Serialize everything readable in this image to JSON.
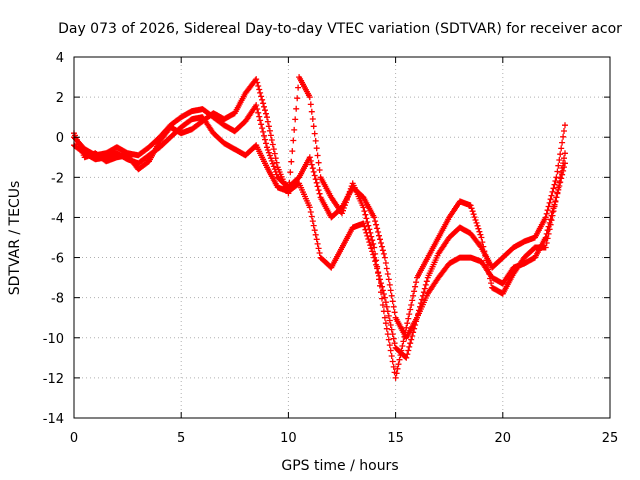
{
  "chart_data": {
    "type": "scatter",
    "title": "Day 073 of 2026, Sidereal Day-to-day VTEC variation (SDTVAR) for receiver acor",
    "xlabel": "GPS time / hours",
    "ylabel": "SDTVAR / TECUs",
    "xlim": [
      0,
      25
    ],
    "ylim": [
      -14,
      4
    ],
    "xticks": [
      0,
      5,
      10,
      15,
      20,
      25
    ],
    "yticks": [
      -14,
      -12,
      -10,
      -8,
      -6,
      -4,
      -2,
      0,
      2,
      4
    ],
    "xtick_labels": [
      "0",
      "5",
      "10",
      "15",
      "20",
      "25"
    ],
    "ytick_labels": [
      "-14",
      "-12",
      "-10",
      "-8",
      "-6",
      "-4",
      "-2",
      "0",
      "2",
      "4"
    ],
    "grid": true,
    "legend": "none",
    "marker": "+",
    "series": [
      {
        "color": "#ff0000",
        "x": [
          0.0,
          0.5,
          1.0,
          1.5,
          2.0,
          2.5,
          3.0,
          3.5,
          4.0,
          4.5,
          5.0,
          5.5,
          6.0,
          6.5,
          7.0,
          7.5,
          8.0,
          8.5,
          9.0,
          9.5,
          10.0,
          10.5,
          11.0,
          11.5,
          12.0,
          12.5,
          13.0,
          13.5,
          14.0,
          14.5,
          15.0,
          15.5,
          16.0,
          16.5,
          17.0,
          17.5,
          18.0,
          18.5,
          19.0,
          19.5,
          20.0,
          20.5,
          21.0,
          21.5,
          22.0,
          22.5,
          22.9
        ],
        "y": [
          0.0,
          -0.6,
          -0.9,
          -0.8,
          -0.5,
          -0.8,
          -0.9,
          -0.5,
          0.0,
          0.6,
          1.0,
          1.3,
          1.4,
          1.0,
          0.6,
          0.3,
          0.8,
          1.6,
          -0.5,
          -2.0,
          -2.5,
          -2.0,
          -1.0,
          -3.0,
          -4.0,
          -3.5,
          -2.5,
          -3.0,
          -4.0,
          -6.0,
          -9.0,
          -10.0,
          -9.0,
          -7.0,
          -5.8,
          -5.0,
          -4.5,
          -4.8,
          -5.5,
          -6.5,
          -6.0,
          -5.5,
          -5.2,
          -5.0,
          -4.0,
          -2.0,
          0.6
        ]
      },
      {
        "color": "#ff0000",
        "x": [
          0.0,
          0.5,
          1.0,
          1.5,
          2.0,
          2.5,
          3.0,
          3.5,
          4.0,
          4.5,
          5.0,
          5.5,
          6.0,
          6.5,
          7.0,
          7.5,
          8.0,
          8.5,
          9.0,
          9.5,
          10.0,
          10.5,
          11.0,
          11.5,
          12.0,
          12.5,
          13.0,
          13.5,
          14.0,
          14.5,
          15.0,
          15.5,
          16.0,
          16.5,
          17.0,
          17.5,
          18.0,
          18.5,
          19.0,
          19.5,
          20.0,
          20.5,
          21.0,
          21.5,
          22.0,
          22.5,
          22.9
        ],
        "y": [
          -0.4,
          -0.8,
          -1.1,
          -1.0,
          -0.8,
          -1.1,
          -1.3,
          -0.9,
          -0.5,
          0.0,
          0.5,
          0.9,
          1.0,
          0.2,
          -0.3,
          -0.6,
          -0.9,
          -0.4,
          -1.5,
          -2.5,
          -2.7,
          -2.3,
          -3.5,
          -6.0,
          -6.5,
          -5.5,
          -4.5,
          -4.3,
          -6.0,
          -8.0,
          -10.5,
          -11.0,
          -9.0,
          -7.8,
          -7.0,
          -6.3,
          -6.0,
          -6.0,
          -6.2,
          -7.0,
          -7.3,
          -6.5,
          -6.3,
          -6.0,
          -5.0,
          -3.0,
          -1.3
        ]
      },
      {
        "color": "#ff0000",
        "x": [
          0.0,
          0.5,
          1.0,
          1.5,
          2.0,
          2.5,
          3.0,
          3.5,
          4.0,
          4.5,
          5.0,
          5.5,
          6.0,
          6.5,
          7.0,
          7.5,
          8.0,
          8.5,
          9.0,
          9.5,
          10.0,
          10.5,
          11.0,
          11.5,
          12.0,
          12.5,
          13.0,
          13.5,
          14.0,
          14.5,
          15.0,
          15.5,
          16.0,
          16.5,
          17.0,
          17.5,
          18.0,
          18.5,
          19.0,
          19.5,
          20.0,
          20.5,
          21.0,
          21.5,
          22.0,
          22.5,
          22.9
        ],
        "y": [
          0.2,
          -1.0,
          -0.8,
          -1.2,
          -1.0,
          -0.9,
          -1.6,
          -1.2,
          -0.2,
          0.5,
          0.2,
          0.4,
          0.8,
          1.2,
          0.9,
          1.2,
          2.2,
          2.9,
          1.0,
          -1.5,
          -2.8,
          3.0,
          2.0,
          -2.0,
          -3.0,
          -3.8,
          -2.3,
          -3.5,
          -5.5,
          -9.0,
          -12.0,
          -9.5,
          -7.0,
          -6.0,
          -5.0,
          -4.0,
          -3.2,
          -3.4,
          -5.0,
          -7.5,
          -7.8,
          -6.8,
          -6.0,
          -5.5,
          -5.5,
          -3.0,
          -0.8
        ]
      }
    ]
  }
}
